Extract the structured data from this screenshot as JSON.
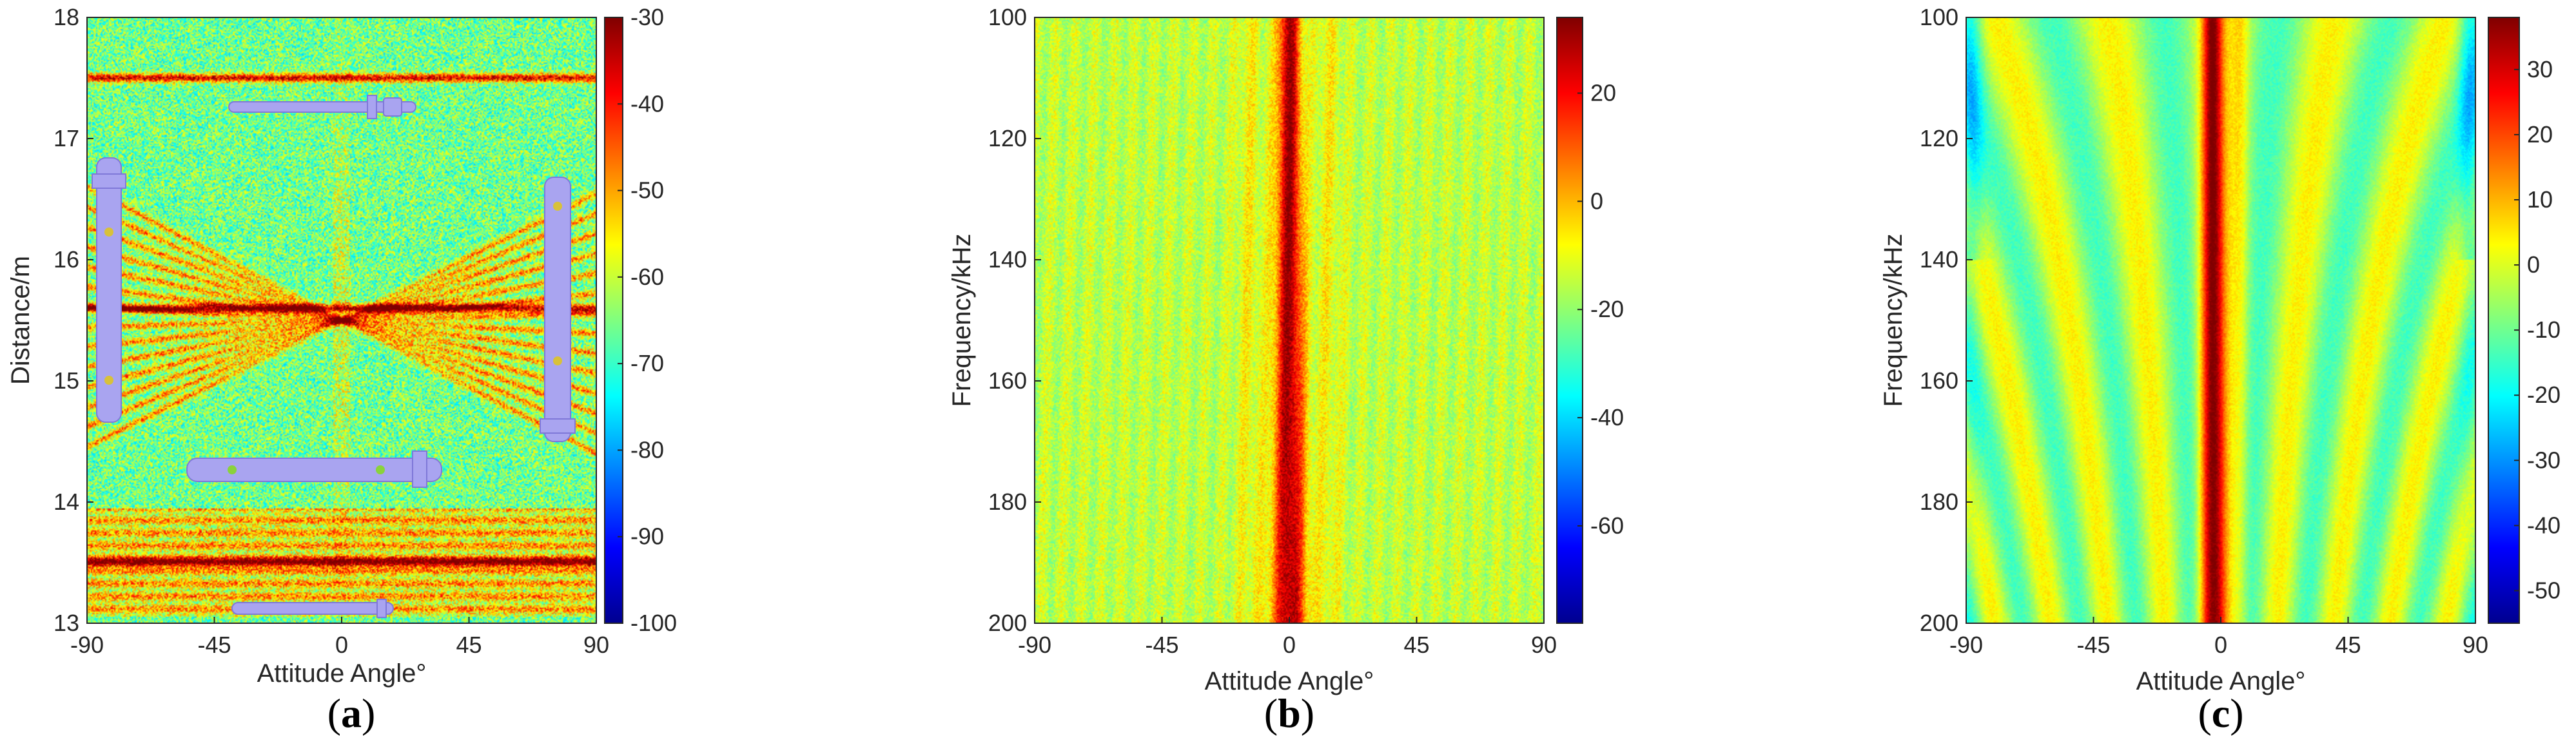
{
  "chart_data": [
    {
      "type": "heatmap",
      "panel_label": "a",
      "xlabel": "Attitude Angle°",
      "ylabel": "Distance/m",
      "xlim": [
        -90,
        90
      ],
      "ylim": [
        13,
        18
      ],
      "y_reversed": false,
      "xticks": [
        "-90",
        "-45",
        "0",
        "45",
        "90"
      ],
      "yticks": [
        "13",
        "14",
        "15",
        "16",
        "17",
        "18"
      ],
      "colorbar": {
        "range": [
          -100,
          -30
        ],
        "ticks": [
          "-30",
          "-40",
          "-50",
          "-60",
          "-70",
          "-80",
          "-90",
          "-100"
        ],
        "colormap": "jet"
      },
      "features": {
        "strong_horizontal_bands_m": [
          17.5,
          15.6,
          13.5
        ],
        "crossing_fan_center": [
          0,
          15.5
        ],
        "overlay_icons": [
          "torpedo-top",
          "torpedo-left-vertical",
          "torpedo-right-vertical",
          "torpedo-middle-horizontal",
          "torpedo-bottom"
        ]
      }
    },
    {
      "type": "heatmap",
      "panel_label": "b",
      "xlabel": "Attitude Angle°",
      "ylabel": "Frequency/kHz",
      "xlim": [
        -90,
        90
      ],
      "ylim": [
        100,
        200
      ],
      "y_reversed": true,
      "xticks": [
        "-90",
        "-45",
        "0",
        "45",
        "90"
      ],
      "yticks": [
        "100",
        "120",
        "140",
        "160",
        "180",
        "200"
      ],
      "colorbar": {
        "range": [
          -78,
          34
        ],
        "ticks": [
          "20",
          "0",
          "-20",
          "-40",
          "-60"
        ],
        "colormap": "jet"
      },
      "features": {
        "peak_center_angle": 0,
        "background_level": -15,
        "peak_level": 30
      }
    },
    {
      "type": "heatmap",
      "panel_label": "c",
      "xlabel": "Attitude Angle°",
      "ylabel": "Frequency/kHz",
      "xlim": [
        -90,
        90
      ],
      "ylim": [
        100,
        200
      ],
      "y_reversed": true,
      "xticks": [
        "-90",
        "-45",
        "0",
        "45",
        "90"
      ],
      "yticks": [
        "100",
        "120",
        "140",
        "160",
        "180",
        "200"
      ],
      "colorbar": {
        "range": [
          -55,
          38
        ],
        "ticks": [
          "30",
          "20",
          "10",
          "0",
          "-10",
          "-20",
          "-30",
          "-40",
          "-50"
        ],
        "colormap": "jet"
      },
      "features": {
        "peak_center_angle": -3,
        "background_level": -5,
        "peak_level": 32,
        "fringe_pattern": "hyperbolic"
      }
    }
  ]
}
